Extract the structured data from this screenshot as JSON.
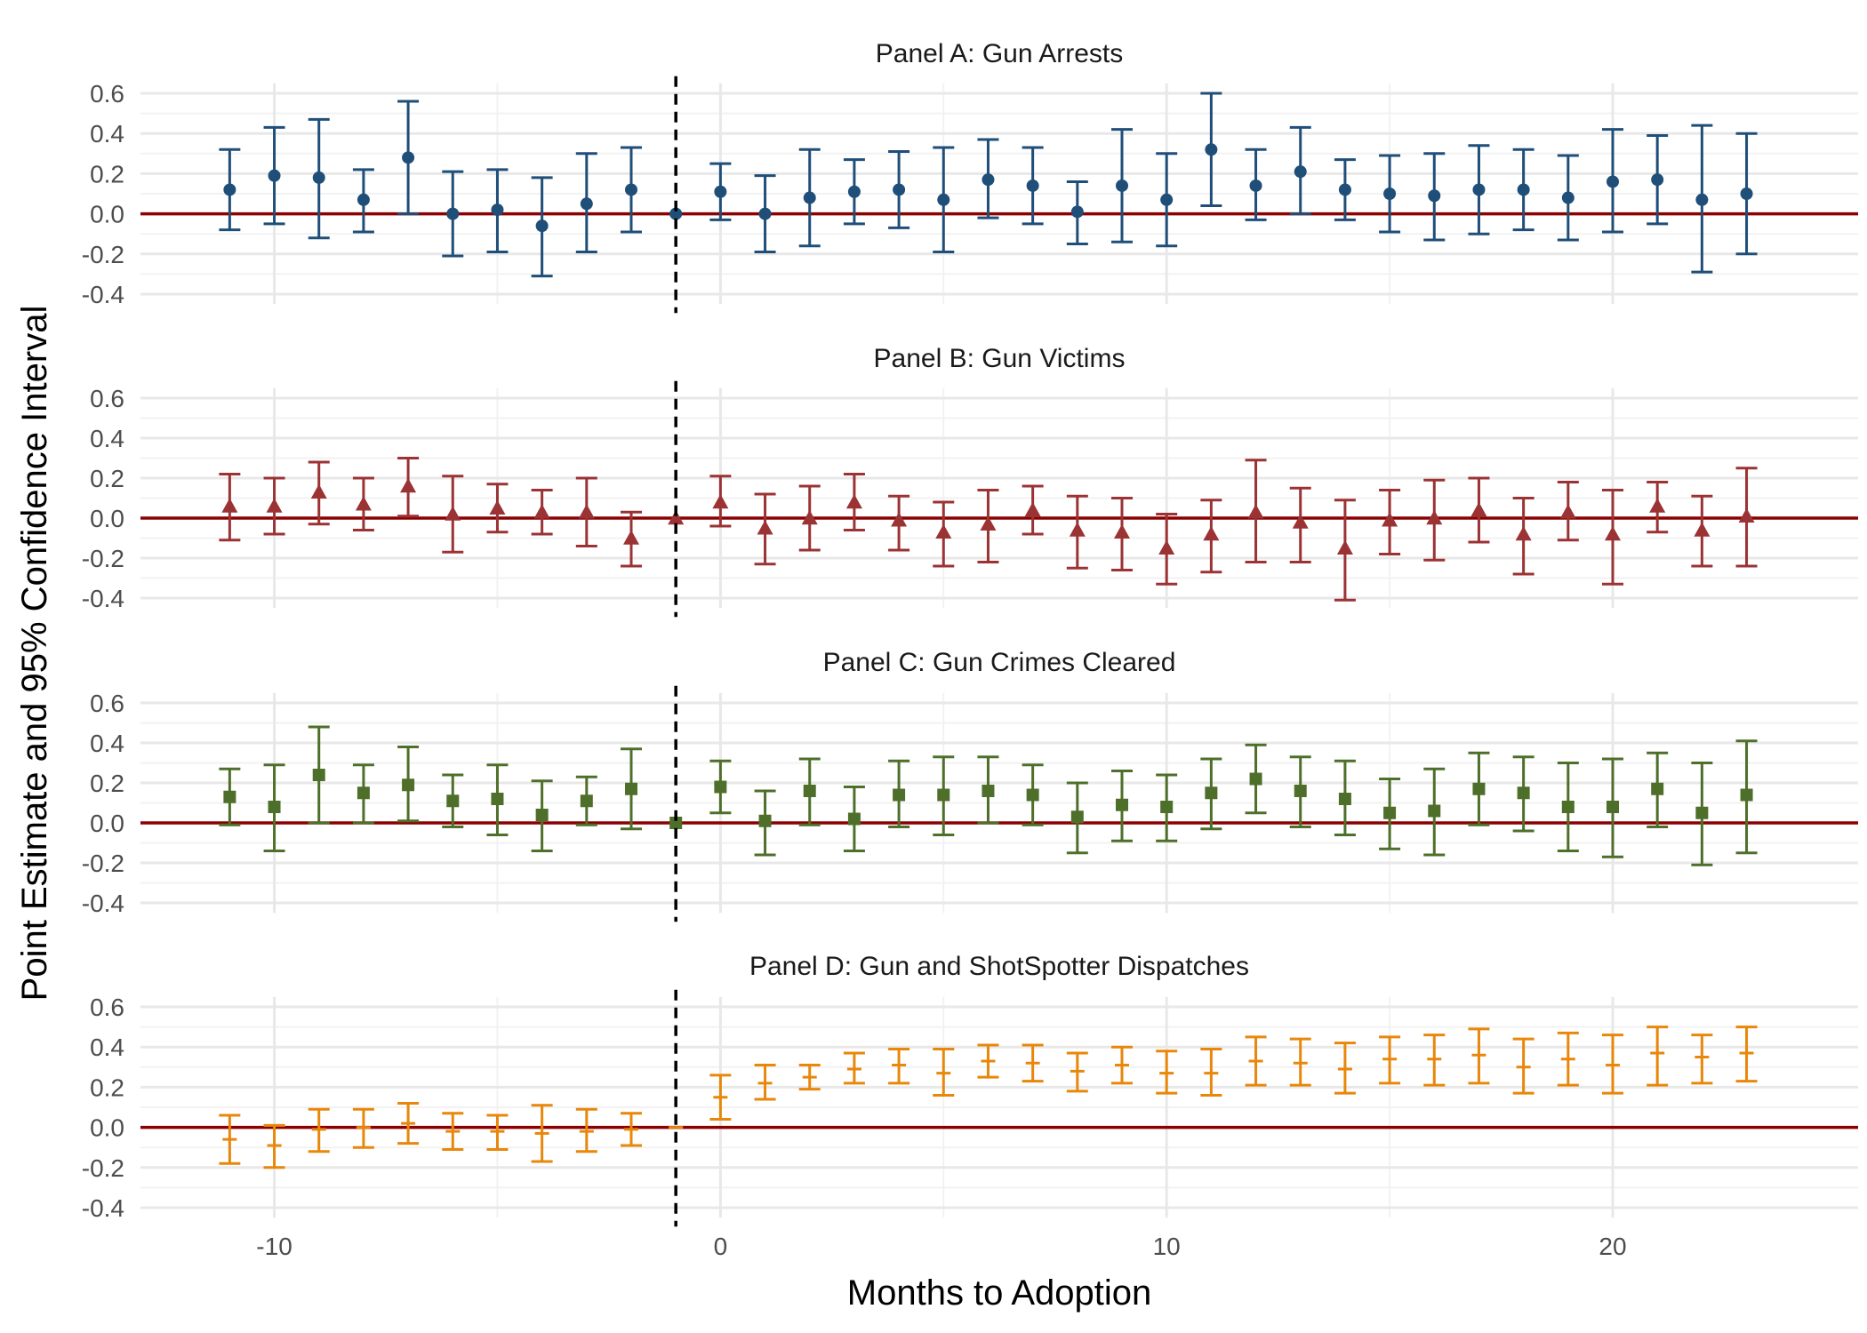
{
  "figure": {
    "ylabel": "Point Estimate and 95% Confidence Interval",
    "xlabel": "Months to Adoption"
  },
  "chart_data": [
    {
      "type": "scatter",
      "title": "Panel A: Gun Arrests",
      "marker": "circle",
      "color": "#1f4e79",
      "x": [
        -11,
        -10,
        -9,
        -8,
        -7,
        -6,
        -5,
        -4,
        -3,
        -2,
        -1,
        0,
        1,
        2,
        3,
        4,
        5,
        6,
        7,
        8,
        9,
        10,
        11,
        12,
        13,
        14,
        15,
        16,
        17,
        18,
        19,
        20,
        21,
        22,
        23
      ],
      "estimate": [
        0.12,
        0.19,
        0.18,
        0.07,
        0.28,
        0.0,
        0.02,
        -0.06,
        0.05,
        0.12,
        0.0,
        0.11,
        0.0,
        0.08,
        0.11,
        0.12,
        0.07,
        0.17,
        0.14,
        0.01,
        0.14,
        0.07,
        0.32,
        0.14,
        0.21,
        0.12,
        0.1,
        0.09,
        0.12,
        0.12,
        0.08,
        0.16,
        0.17,
        0.07,
        0.1
      ],
      "ci_low": [
        -0.08,
        -0.05,
        -0.12,
        -0.09,
        0.0,
        -0.21,
        -0.19,
        -0.31,
        -0.19,
        -0.09,
        0.0,
        -0.03,
        -0.19,
        -0.16,
        -0.05,
        -0.07,
        -0.19,
        -0.02,
        -0.05,
        -0.15,
        -0.14,
        -0.16,
        0.04,
        -0.03,
        0.0,
        -0.03,
        -0.09,
        -0.13,
        -0.1,
        -0.08,
        -0.13,
        -0.09,
        -0.05,
        -0.29,
        -0.2
      ],
      "ci_high": [
        0.32,
        0.43,
        0.47,
        0.22,
        0.56,
        0.21,
        0.22,
        0.18,
        0.3,
        0.33,
        0.0,
        0.25,
        0.19,
        0.32,
        0.27,
        0.31,
        0.33,
        0.37,
        0.33,
        0.16,
        0.42,
        0.3,
        0.6,
        0.32,
        0.43,
        0.27,
        0.29,
        0.3,
        0.34,
        0.32,
        0.29,
        0.42,
        0.39,
        0.44,
        0.4
      ],
      "ylim": [
        -0.45,
        0.65
      ],
      "yticks": [
        "0.6",
        "0.4",
        "0.2",
        "0.0",
        "-0.2",
        "-0.4"
      ],
      "reference_line_y": 0,
      "event_line_x": -1,
      "grid": true
    },
    {
      "type": "scatter",
      "title": "Panel B: Gun Victims",
      "marker": "triangle",
      "color": "#9b3234",
      "x": [
        -11,
        -10,
        -9,
        -8,
        -7,
        -6,
        -5,
        -4,
        -3,
        -2,
        -1,
        0,
        1,
        2,
        3,
        4,
        5,
        6,
        7,
        8,
        9,
        10,
        11,
        12,
        13,
        14,
        15,
        16,
        17,
        18,
        19,
        20,
        21,
        22,
        23
      ],
      "estimate": [
        0.06,
        0.06,
        0.13,
        0.07,
        0.16,
        0.02,
        0.05,
        0.03,
        0.03,
        -0.1,
        0.0,
        0.08,
        -0.05,
        0.0,
        0.08,
        -0.01,
        -0.07,
        -0.03,
        0.04,
        -0.06,
        -0.07,
        -0.15,
        -0.08,
        0.03,
        -0.02,
        -0.15,
        -0.01,
        0.0,
        0.04,
        -0.08,
        0.03,
        -0.08,
        0.06,
        -0.06,
        0.01
      ],
      "ci_low": [
        -0.11,
        -0.08,
        -0.03,
        -0.06,
        0.01,
        -0.17,
        -0.07,
        -0.08,
        -0.14,
        -0.24,
        0.0,
        -0.04,
        -0.23,
        -0.16,
        -0.06,
        -0.16,
        -0.24,
        -0.22,
        -0.08,
        -0.25,
        -0.26,
        -0.33,
        -0.27,
        -0.22,
        -0.22,
        -0.41,
        -0.18,
        -0.21,
        -0.12,
        -0.28,
        -0.11,
        -0.33,
        -0.07,
        -0.24,
        -0.24
      ],
      "ci_high": [
        0.22,
        0.2,
        0.28,
        0.2,
        0.3,
        0.21,
        0.17,
        0.14,
        0.2,
        0.03,
        0.0,
        0.21,
        0.12,
        0.16,
        0.22,
        0.11,
        0.08,
        0.14,
        0.16,
        0.11,
        0.1,
        0.02,
        0.09,
        0.29,
        0.15,
        0.09,
        0.14,
        0.19,
        0.2,
        0.1,
        0.18,
        0.14,
        0.18,
        0.11,
        0.25
      ],
      "ylim": [
        -0.45,
        0.65
      ],
      "yticks": [
        "0.6",
        "0.4",
        "0.2",
        "0.0",
        "-0.2",
        "-0.4"
      ],
      "reference_line_y": 0,
      "event_line_x": -1,
      "grid": true
    },
    {
      "type": "scatter",
      "title": "Panel C: Gun Crimes Cleared",
      "marker": "square",
      "color": "#4e6f2a",
      "x": [
        -11,
        -10,
        -9,
        -8,
        -7,
        -6,
        -5,
        -4,
        -3,
        -2,
        -1,
        0,
        1,
        2,
        3,
        4,
        5,
        6,
        7,
        8,
        9,
        10,
        11,
        12,
        13,
        14,
        15,
        16,
        17,
        18,
        19,
        20,
        21,
        22,
        23
      ],
      "estimate": [
        0.13,
        0.08,
        0.24,
        0.15,
        0.19,
        0.11,
        0.12,
        0.04,
        0.11,
        0.17,
        0.0,
        0.18,
        0.01,
        0.16,
        0.02,
        0.14,
        0.14,
        0.16,
        0.14,
        0.03,
        0.09,
        0.08,
        0.15,
        0.22,
        0.16,
        0.12,
        0.05,
        0.06,
        0.17,
        0.15,
        0.08,
        0.08,
        0.17,
        0.05,
        0.14
      ],
      "ci_low": [
        -0.01,
        -0.14,
        0.0,
        0.0,
        0.01,
        -0.02,
        -0.06,
        -0.14,
        -0.01,
        -0.03,
        0.0,
        0.05,
        -0.16,
        -0.01,
        -0.14,
        -0.02,
        -0.06,
        0.0,
        -0.01,
        -0.15,
        -0.09,
        -0.09,
        -0.03,
        0.05,
        -0.02,
        -0.06,
        -0.13,
        -0.16,
        -0.01,
        -0.04,
        -0.14,
        -0.17,
        -0.02,
        -0.21,
        -0.15
      ],
      "ci_high": [
        0.27,
        0.29,
        0.48,
        0.29,
        0.38,
        0.24,
        0.29,
        0.21,
        0.23,
        0.37,
        0.0,
        0.31,
        0.16,
        0.32,
        0.18,
        0.31,
        0.33,
        0.33,
        0.29,
        0.2,
        0.26,
        0.24,
        0.32,
        0.39,
        0.33,
        0.31,
        0.22,
        0.27,
        0.35,
        0.33,
        0.3,
        0.32,
        0.35,
        0.3,
        0.41
      ],
      "ylim": [
        -0.45,
        0.65
      ],
      "yticks": [
        "0.6",
        "0.4",
        "0.2",
        "0.0",
        "-0.2",
        "-0.4"
      ],
      "reference_line_y": 0,
      "event_line_x": -1,
      "grid": true
    },
    {
      "type": "scatter",
      "title": "Panel D: Gun and ShotSpotter Dispatches",
      "marker": "dash",
      "color": "#e8870a",
      "x": [
        -11,
        -10,
        -9,
        -8,
        -7,
        -6,
        -5,
        -4,
        -3,
        -2,
        -1,
        0,
        1,
        2,
        3,
        4,
        5,
        6,
        7,
        8,
        9,
        10,
        11,
        12,
        13,
        14,
        15,
        16,
        17,
        18,
        19,
        20,
        21,
        22,
        23
      ],
      "estimate": [
        -0.06,
        -0.09,
        -0.01,
        0.0,
        0.02,
        -0.02,
        -0.02,
        -0.03,
        -0.02,
        -0.01,
        0.0,
        0.15,
        0.22,
        0.25,
        0.29,
        0.31,
        0.27,
        0.33,
        0.32,
        0.28,
        0.31,
        0.27,
        0.27,
        0.33,
        0.32,
        0.29,
        0.34,
        0.34,
        0.36,
        0.3,
        0.34,
        0.31,
        0.37,
        0.35,
        0.37
      ],
      "ci_low": [
        -0.18,
        -0.2,
        -0.12,
        -0.1,
        -0.08,
        -0.11,
        -0.11,
        -0.17,
        -0.12,
        -0.09,
        0.0,
        0.04,
        0.14,
        0.19,
        0.22,
        0.22,
        0.16,
        0.25,
        0.23,
        0.18,
        0.22,
        0.17,
        0.16,
        0.21,
        0.21,
        0.17,
        0.22,
        0.21,
        0.22,
        0.17,
        0.21,
        0.17,
        0.21,
        0.22,
        0.23
      ],
      "ci_high": [
        0.06,
        0.01,
        0.09,
        0.09,
        0.12,
        0.07,
        0.06,
        0.11,
        0.09,
        0.07,
        0.0,
        0.26,
        0.31,
        0.31,
        0.37,
        0.39,
        0.39,
        0.41,
        0.41,
        0.37,
        0.4,
        0.38,
        0.39,
        0.45,
        0.44,
        0.42,
        0.45,
        0.46,
        0.49,
        0.44,
        0.47,
        0.46,
        0.5,
        0.46,
        0.5
      ],
      "ylim": [
        -0.45,
        0.65
      ],
      "yticks": [
        "0.6",
        "0.4",
        "0.2",
        "0.0",
        "-0.2",
        "-0.4"
      ],
      "reference_line_y": 0,
      "event_line_x": -1,
      "grid": true
    }
  ],
  "x_axis": {
    "xlim": [
      -13,
      25.5
    ],
    "ticks": [
      -10,
      0,
      10,
      20
    ],
    "tick_labels": [
      "-10",
      "0",
      "10",
      "20"
    ]
  },
  "colors": {
    "zero_line": "#8b0000",
    "event_line": "#000000",
    "grid": "#e8e8e8",
    "text": "#4d4d4d"
  }
}
